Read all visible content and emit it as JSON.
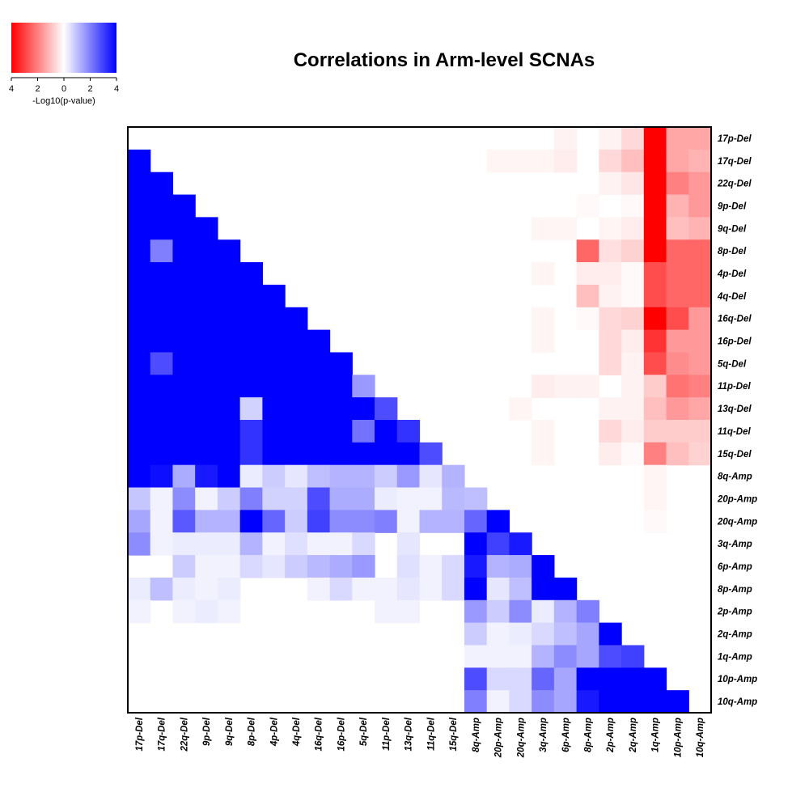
{
  "chart_data": {
    "type": "heatmap",
    "title": "Correlations in Arm-level SCNAs",
    "labels": [
      "17p-Del",
      "17q-Del",
      "22q-Del",
      "9p-Del",
      "9q-Del",
      "8p-Del",
      "4p-Del",
      "4q-Del",
      "16q-Del",
      "16p-Del",
      "5q-Del",
      "11p-Del",
      "13q-Del",
      "11q-Del",
      "15q-Del",
      "8q-Amp",
      "20p-Amp",
      "20q-Amp",
      "3q-Amp",
      "6p-Amp",
      "8p-Amp",
      "2p-Amp",
      "2q-Amp",
      "1q-Amp",
      "10p-Amp",
      "10q-Amp"
    ],
    "x_tick_labels": [
      "17p-Del",
      "17q-Del",
      "22q-Del",
      "9p-Del",
      "9q-Del",
      "8p-Del",
      "4p-Del",
      "4q-Del",
      "16q-Del",
      "16p-Del",
      "5q-Del",
      "11p-Del",
      "13q-Del",
      "11q-Del",
      "15q-Del",
      "8q-Amp",
      "20p-Amp",
      "20q-Amp",
      "3q-Amp",
      "6p-Amp",
      "8p-Amp",
      "2p-Amp",
      "2q-Amp",
      "1q-Amp",
      "10p-Amp",
      "10q-Amp"
    ],
    "y_tick_labels": [
      "17p-Del",
      "17q-Del",
      "22q-Del",
      "9p-Del",
      "9q-Del",
      "8p-Del",
      "4p-Del",
      "4q-Del",
      "16q-Del",
      "16p-Del",
      "5q-Del",
      "11p-Del",
      "13q-Del",
      "11q-Del",
      "15q-Del",
      "8q-Amp",
      "20p-Amp",
      "20q-Amp",
      "3q-Amp",
      "6p-Amp",
      "8p-Amp",
      "2p-Amp",
      "2q-Amp",
      "1q-Amp",
      "10p-Amp",
      "10q-Amp"
    ],
    "value_range": [
      -4,
      4
    ],
    "note": "Lower triangle: positive correlation (blue, -log10 p); upper triangle: negative correlation (red, -log10 p, stored as negative values)",
    "matrix": [
      [
        0,
        0,
        0,
        0,
        0,
        0,
        0,
        0,
        0,
        0,
        0,
        0,
        0,
        0,
        0,
        0,
        0,
        0,
        0,
        -0.2,
        0,
        -0.2,
        -0.6,
        -4,
        -1.4,
        -1.4
      ],
      [
        4,
        0,
        0,
        0,
        0,
        0,
        0,
        0,
        0,
        0,
        0,
        0,
        0,
        0,
        0,
        0,
        -0.15,
        -0.15,
        -0.15,
        -0.3,
        0,
        -0.6,
        -1,
        -4,
        -1.4,
        -1.2
      ],
      [
        4,
        4,
        0,
        0,
        0,
        0,
        0,
        0,
        0,
        0,
        0,
        0,
        0,
        0,
        0,
        0,
        0,
        0,
        0,
        0,
        0,
        -0.2,
        -0.4,
        -4,
        -2,
        -1.6
      ],
      [
        4,
        4,
        4,
        0,
        0,
        0,
        0,
        0,
        0,
        0,
        0,
        0,
        0,
        0,
        0,
        0,
        0,
        0,
        0,
        0,
        -0.1,
        0,
        -0.1,
        -4,
        -1.2,
        -1.6
      ],
      [
        4,
        4,
        4,
        4,
        0,
        0,
        0,
        0,
        0,
        0,
        0,
        0,
        0,
        0,
        0,
        0,
        0,
        0,
        -0.15,
        -0.15,
        0,
        -0.15,
        -0.3,
        -4,
        -1,
        -1.2
      ],
      [
        4,
        2,
        4,
        4,
        4,
        0,
        0,
        0,
        0,
        0,
        0,
        0,
        0,
        0,
        0,
        0,
        0,
        0,
        0,
        0,
        -2.4,
        -0.5,
        -0.7,
        -4,
        -2.4,
        -2.4
      ],
      [
        4,
        4,
        4,
        4,
        4,
        4,
        0,
        0,
        0,
        0,
        0,
        0,
        0,
        0,
        0,
        0,
        0,
        0,
        -0.15,
        0,
        -0.3,
        -0.3,
        -0.1,
        -2.8,
        -2.4,
        -2.4
      ],
      [
        4,
        4,
        4,
        4,
        4,
        4,
        4,
        0,
        0,
        0,
        0,
        0,
        0,
        0,
        0,
        0,
        0,
        0,
        0,
        0,
        -1,
        -0.2,
        -0.1,
        -2.8,
        -2.4,
        -2.4
      ],
      [
        4,
        4,
        4,
        4,
        4,
        4,
        4,
        4,
        0,
        0,
        0,
        0,
        0,
        0,
        0,
        0,
        0,
        0,
        -0.15,
        0,
        -0.1,
        -0.6,
        -0.7,
        -4,
        -2.8,
        -1.6
      ],
      [
        4,
        4,
        4,
        4,
        4,
        4,
        4,
        4,
        4,
        0,
        0,
        0,
        0,
        0,
        0,
        0,
        0,
        0,
        -0.15,
        0,
        0,
        -0.6,
        -0.3,
        -3.2,
        -1.6,
        -1.6
      ],
      [
        4,
        2.8,
        4,
        4,
        4,
        4,
        4,
        4,
        4,
        4,
        0,
        0,
        0,
        0,
        0,
        0,
        0,
        0,
        0,
        0,
        0,
        -0.6,
        -0.2,
        -2.8,
        -1.8,
        -1.6
      ],
      [
        4,
        4,
        4,
        4,
        4,
        4,
        4,
        4,
        4,
        4,
        1.6,
        0,
        0,
        0,
        0,
        0,
        0,
        0,
        -0.3,
        -0.2,
        -0.2,
        0,
        -0.2,
        -0.8,
        -2.2,
        -2
      ],
      [
        4,
        4,
        4,
        4,
        4,
        0.7,
        4,
        4,
        4,
        4,
        4,
        2.8,
        0,
        0,
        0,
        0,
        0,
        -0.15,
        0,
        0,
        0,
        -0.2,
        -0.2,
        -1,
        -1.6,
        -1.4
      ],
      [
        4,
        4,
        4,
        4,
        4,
        3.2,
        4,
        4,
        4,
        4,
        2.2,
        4,
        3.2,
        0,
        0,
        0,
        0,
        0,
        -0.15,
        0,
        0,
        -0.6,
        -0.3,
        -0.8,
        -0.8,
        -0.8
      ],
      [
        4,
        4,
        4,
        4,
        4,
        3.2,
        4,
        4,
        4,
        4,
        4,
        4,
        4,
        2.8,
        0,
        0,
        0,
        0,
        -0.15,
        0,
        0,
        -0.3,
        -0.1,
        -2,
        -1,
        -0.7
      ],
      [
        4,
        3.8,
        1.3,
        3.6,
        4,
        0.3,
        0.8,
        0.4,
        1,
        1.2,
        1.2,
        0.8,
        1.6,
        0.4,
        1.2,
        0,
        0,
        0,
        0,
        0,
        0,
        0,
        0,
        -0.15,
        0,
        0
      ],
      [
        0.9,
        0.2,
        1.8,
        0.2,
        0.8,
        2,
        0.7,
        0.7,
        2.8,
        1.3,
        1.3,
        0.3,
        0.2,
        0.2,
        1.1,
        1,
        0,
        0,
        0,
        0,
        0,
        0,
        0,
        -0.15,
        0,
        0
      ],
      [
        1.4,
        0.2,
        2.6,
        1.2,
        1.2,
        4,
        2.4,
        0.8,
        3,
        1.8,
        1.8,
        2,
        0.2,
        1.2,
        1.2,
        2.4,
        4,
        0,
        0,
        0,
        0,
        0,
        0,
        -0.1,
        0,
        0
      ],
      [
        1.8,
        0.2,
        0.3,
        0.3,
        0.3,
        1.2,
        0.2,
        0.5,
        0.2,
        0.2,
        0.6,
        0,
        0.4,
        0,
        0,
        4,
        3,
        3.6,
        0,
        0,
        0,
        0,
        0,
        0,
        0,
        0
      ],
      [
        0,
        0,
        0.8,
        0.2,
        0.2,
        0.6,
        0.4,
        0.8,
        1.1,
        1.3,
        1.6,
        0,
        0.5,
        0.2,
        0.6,
        3.6,
        1.2,
        1.3,
        4,
        0,
        0,
        0,
        0,
        0,
        0,
        0
      ],
      [
        0.3,
        1,
        0.3,
        0.2,
        0.3,
        0,
        0,
        0,
        0.2,
        0.6,
        0.2,
        0.2,
        0.4,
        0.2,
        0.6,
        4,
        0.4,
        1,
        4,
        4,
        0,
        0,
        0,
        0,
        0,
        0
      ],
      [
        0.2,
        0,
        0.2,
        0.3,
        0.2,
        0,
        0,
        0,
        0,
        0,
        0,
        0.2,
        0.2,
        0,
        0,
        1.6,
        0.8,
        1.8,
        0.3,
        1.2,
        2,
        0,
        0,
        0,
        0,
        0
      ],
      [
        0,
        0,
        0,
        0,
        0,
        0,
        0,
        0,
        0,
        0,
        0,
        0,
        0,
        0,
        0,
        0.8,
        0.2,
        0.3,
        0.6,
        1,
        1.4,
        4,
        0,
        0,
        0,
        0
      ],
      [
        0,
        0,
        0,
        0,
        0,
        0,
        0,
        0,
        0,
        0,
        0,
        0,
        0,
        0,
        0,
        0.2,
        0.2,
        0.2,
        1.2,
        1.8,
        1.4,
        2.8,
        3,
        0,
        0,
        0
      ],
      [
        0,
        0,
        0,
        0,
        0,
        0,
        0,
        0,
        0,
        0,
        0,
        0,
        0,
        0,
        0,
        2.8,
        0.6,
        0.6,
        2.4,
        1.4,
        4,
        4,
        4,
        4,
        0,
        0
      ],
      [
        0,
        0,
        0,
        0,
        0,
        0,
        0,
        0,
        0,
        0,
        0,
        0,
        0,
        0,
        0,
        2,
        0.2,
        0.6,
        1.8,
        1.4,
        3.6,
        4,
        4,
        4,
        4,
        0
      ]
    ]
  },
  "legend": {
    "label": "-Log10(p-value)",
    "tick_labels": [
      "4",
      "2",
      "0",
      "2",
      "4"
    ]
  }
}
